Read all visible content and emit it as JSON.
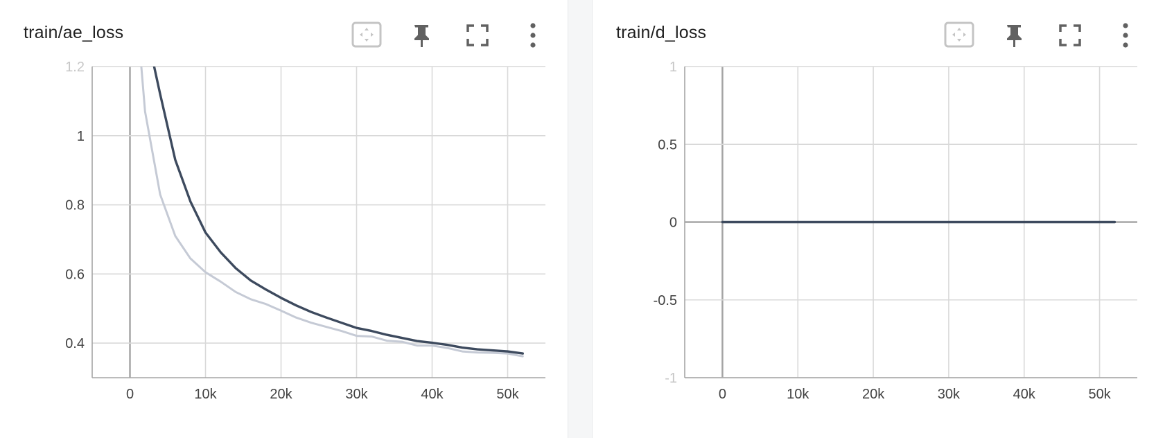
{
  "colors": {
    "smoothed": "#3d4a5e",
    "raw": "#c5cad5",
    "grid": "#d9d9d9",
    "axis_zero": "#a5a5a5",
    "card_bg": "#ffffff",
    "page_bg": "#f5f6f7"
  },
  "cards": [
    {
      "title": "train/ae_loss",
      "toolbar": {
        "fit_icon": "fit-domain-icon",
        "pin_icon": "pin-icon",
        "fullscreen_icon": "fullscreen-icon",
        "more_icon": "more-vert-icon"
      }
    },
    {
      "title": "train/d_loss",
      "toolbar": {
        "fit_icon": "fit-domain-icon",
        "pin_icon": "pin-icon",
        "fullscreen_icon": "fullscreen-icon",
        "more_icon": "more-vert-icon"
      }
    }
  ],
  "chart_data": [
    {
      "type": "line",
      "title": "train/ae_loss",
      "xlabel": "",
      "ylabel": "",
      "xlim": [
        -5000,
        55000
      ],
      "ylim": [
        0.3,
        1.2
      ],
      "grid": true,
      "x_ticks": [
        0,
        10000,
        20000,
        30000,
        40000,
        50000
      ],
      "x_tick_labels": [
        "0",
        "10k",
        "20k",
        "30k",
        "40k",
        "50k"
      ],
      "y_ticks": [
        0.4,
        0.6,
        0.8,
        1,
        1.2
      ],
      "y_tick_labels": [
        "0.4",
        "0.6",
        "0.8",
        "1",
        "1.2"
      ],
      "series": [
        {
          "role": "raw",
          "x": [
            1500,
            2000,
            4000,
            6000,
            8000,
            10000,
            12000,
            14000,
            16000,
            18000,
            20000,
            22000,
            24000,
            26000,
            28000,
            30000,
            32000,
            34000,
            36000,
            38000,
            40000,
            42000,
            44000,
            46000,
            48000,
            50000,
            52000
          ],
          "y": [
            1.2,
            1.07,
            0.83,
            0.71,
            0.645,
            0.605,
            0.578,
            0.548,
            0.527,
            0.513,
            0.494,
            0.474,
            0.459,
            0.447,
            0.435,
            0.421,
            0.419,
            0.407,
            0.404,
            0.393,
            0.393,
            0.386,
            0.376,
            0.373,
            0.372,
            0.37,
            0.362
          ]
        },
        {
          "role": "smoothed",
          "x": [
            3200,
            4000,
            6000,
            8000,
            10000,
            12000,
            14000,
            16000,
            18000,
            20000,
            22000,
            24000,
            26000,
            28000,
            30000,
            32000,
            34000,
            36000,
            38000,
            40000,
            42000,
            44000,
            46000,
            48000,
            50000,
            52000
          ],
          "y": [
            1.2,
            1.12,
            0.93,
            0.81,
            0.72,
            0.663,
            0.617,
            0.581,
            0.555,
            0.531,
            0.509,
            0.49,
            0.474,
            0.459,
            0.444,
            0.435,
            0.424,
            0.415,
            0.406,
            0.401,
            0.395,
            0.387,
            0.382,
            0.379,
            0.376,
            0.37
          ]
        }
      ]
    },
    {
      "type": "line",
      "title": "train/d_loss",
      "xlabel": "",
      "ylabel": "",
      "xlim": [
        -5000,
        55000
      ],
      "ylim": [
        -1,
        1
      ],
      "grid": true,
      "x_ticks": [
        0,
        10000,
        20000,
        30000,
        40000,
        50000
      ],
      "x_tick_labels": [
        "0",
        "10k",
        "20k",
        "30k",
        "40k",
        "50k"
      ],
      "y_ticks": [
        -1,
        -0.5,
        0,
        0.5,
        1
      ],
      "y_tick_labels": [
        "-1",
        "-0.5",
        "0",
        "0.5",
        "1"
      ],
      "series": [
        {
          "role": "raw",
          "x": [
            0,
            52000
          ],
          "y": [
            0,
            0
          ]
        },
        {
          "role": "smoothed",
          "x": [
            0,
            52000
          ],
          "y": [
            0,
            0
          ]
        }
      ]
    }
  ]
}
